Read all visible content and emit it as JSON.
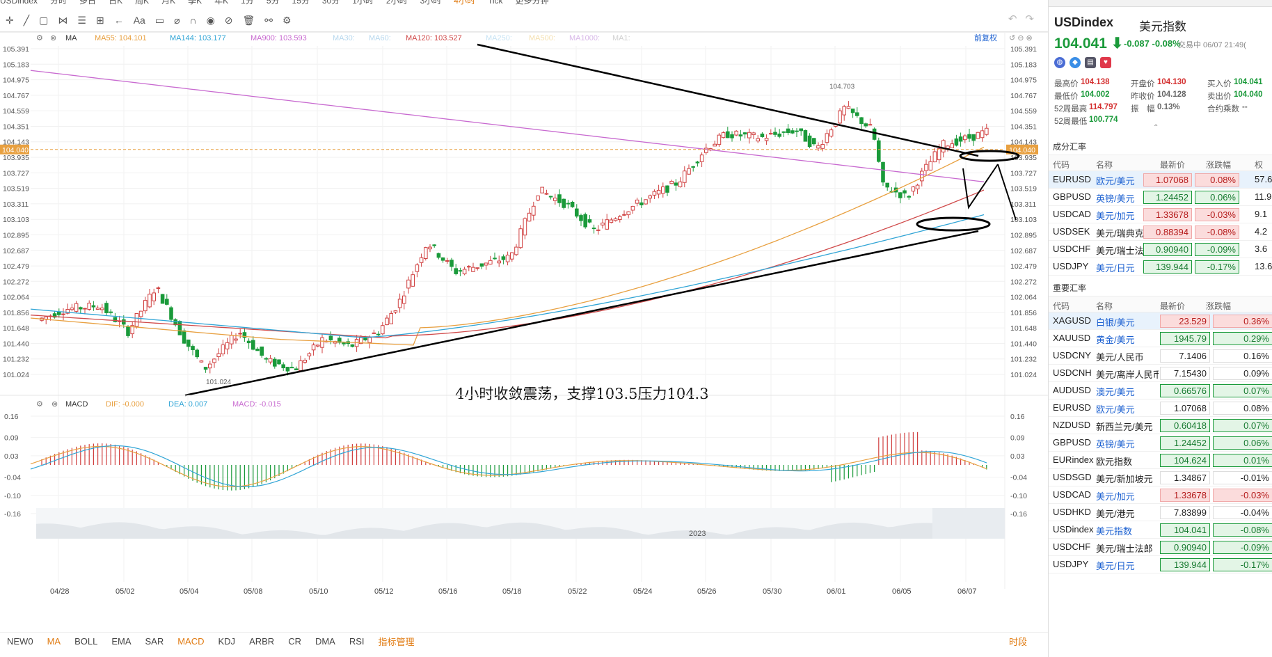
{
  "toolbar": {
    "periods": [
      "USDindex",
      "分时",
      "多日",
      "日K",
      "周K",
      "月K",
      "季K",
      "年K",
      "1分",
      "5分",
      "15分",
      "30分",
      "1小时",
      "2小时",
      "3小时",
      "4小时",
      "Tick",
      "更多分钟"
    ],
    "selected_period": "4小时"
  },
  "ma_legend": [
    {
      "label": "MA55:",
      "value": "104.101",
      "color": "#e8a040"
    },
    {
      "label": "MA144:",
      "value": "103.177",
      "color": "#31a5d6"
    },
    {
      "label": "MA900:",
      "value": "103.593",
      "color": "#c86ad0"
    },
    {
      "label": "MA30:",
      "value": "",
      "color": "#b8d8ee"
    },
    {
      "label": "MA60:",
      "value": "",
      "color": "#b8d8ee"
    },
    {
      "label": "MA120:",
      "value": "103.527",
      "color": "#d04a4a"
    },
    {
      "label": "MA250:",
      "value": "",
      "color": "#c8e4f4"
    },
    {
      "label": "MA500:",
      "value": "",
      "color": "#f4e0b0"
    },
    {
      "label": "MA1000:",
      "value": "",
      "color": "#d8b8e8"
    },
    {
      "label": "MA1:",
      "value": "",
      "color": "#d0d0d0"
    }
  ],
  "ma_title": "MA",
  "adjust_label": "前复权",
  "macd_legend": {
    "title": "MACD",
    "dif": "DIF: -0.000",
    "dea": "DEA: 0.007",
    "macd": "MACD: -0.015"
  },
  "chart_data": {
    "type": "candlestick",
    "price_axis": [
      "105.391",
      "105.183",
      "104.975",
      "104.767",
      "104.559",
      "104.351",
      "104.143",
      "103.935",
      "103.727",
      "103.519",
      "103.311",
      "103.103",
      "102.895",
      "102.687",
      "102.479",
      "102.272",
      "102.064",
      "101.856",
      "101.648",
      "101.440",
      "101.232",
      "101.024"
    ],
    "macd_axis": [
      "0.16",
      "0.09",
      "0.03",
      "-0.04",
      "-0.10",
      "-0.16"
    ],
    "date_axis": [
      "04/28",
      "05/02",
      "05/04",
      "05/08",
      "05/10",
      "05/12",
      "05/16",
      "05/18",
      "05/22",
      "05/24",
      "05/26",
      "05/30",
      "06/01",
      "06/05",
      "06/07"
    ],
    "last_price_marker": "104.040",
    "high_label": "104.703",
    "low_label": "101.024",
    "annotation": "4小时收敛震荡，支撑103.5压力104.3",
    "overview_year": "2023"
  },
  "indicator_bar": {
    "items": [
      "NEW0",
      "MA",
      "BOLL",
      "EMA",
      "SAR",
      "MACD",
      "KDJ",
      "ARBR",
      "CR",
      "DMA",
      "RSI"
    ],
    "active": [
      "MA",
      "MACD"
    ],
    "manage": "指标管理",
    "right": "时段"
  },
  "quote": {
    "symbol": "USDindex",
    "name": "美元指数",
    "price": "104.041",
    "change": "-0.087",
    "pct": "-0.08%",
    "status": "交易中 06/07 21:49(",
    "rows": [
      [
        [
          "最高价",
          "104.138",
          "red"
        ],
        [
          "开盘价",
          "104.130",
          "red"
        ],
        [
          "买入价",
          "104.041",
          "green"
        ]
      ],
      [
        [
          "最低价",
          "104.002",
          "green"
        ],
        [
          "昨收价",
          "104.128",
          "gray"
        ],
        [
          "卖出价",
          "104.040",
          "green"
        ]
      ],
      [
        [
          "52周最高",
          "114.797",
          "red"
        ],
        [
          "振　幅",
          "0.13%",
          "gray"
        ],
        [
          "合约乘数",
          "--",
          "gray"
        ]
      ],
      [
        [
          "52周最低",
          "100.774",
          "green"
        ],
        [
          "",
          ""
        ],
        [
          "",
          ""
        ]
      ]
    ]
  },
  "components": {
    "title": "成分汇率",
    "headers": [
      "代码",
      "名称",
      "最新价",
      "涨跌幅",
      "权"
    ],
    "rows": [
      {
        "code": "EURUSD",
        "name": "欧元/美元",
        "price": "1.07068",
        "pct": "0.08%",
        "w": "57.6",
        "dir": "up",
        "hl": true
      },
      {
        "code": "GBPUSD",
        "name": "英镑/美元",
        "price": "1.24452",
        "pct": "0.06%",
        "w": "11.9",
        "dir": "dn"
      },
      {
        "code": "USDCAD",
        "name": "美元/加元",
        "price": "1.33678",
        "pct": "-0.03%",
        "w": "9.1",
        "dir": "up"
      },
      {
        "code": "USDSEK",
        "name": "美元/瑞典克",
        "price": "0.88394",
        "pct": "-0.08%",
        "w": "4.2",
        "dir": "up"
      },
      {
        "code": "USDCHF",
        "name": "美元/瑞士法",
        "price": "0.90940",
        "pct": "-0.09%",
        "w": "3.6",
        "dir": "dn"
      },
      {
        "code": "USDJPY",
        "name": "美元/日元",
        "price": "139.944",
        "pct": "-0.17%",
        "w": "13.6",
        "dir": "dn"
      }
    ]
  },
  "major": {
    "title": "重要汇率",
    "headers": [
      "代码",
      "名称",
      "最新价",
      "涨跌幅"
    ],
    "rows": [
      {
        "code": "XAGUSD",
        "name": "白银/美元",
        "price": "23.529",
        "pct": "0.36%",
        "dir": "up",
        "hl": true
      },
      {
        "code": "XAUUSD",
        "name": "黄金/美元",
        "price": "1945.79",
        "pct": "0.29%",
        "dir": "dn"
      },
      {
        "code": "USDCNY",
        "name": "美元/人民币",
        "price": "7.1406",
        "pct": "0.16%",
        "dir": "fl"
      },
      {
        "code": "USDCNH",
        "name": "美元/离岸人民币",
        "price": "7.15430",
        "pct": "0.09%",
        "dir": "fl"
      },
      {
        "code": "AUDUSD",
        "name": "澳元/美元",
        "price": "0.66576",
        "pct": "0.07%",
        "dir": "dn"
      },
      {
        "code": "EURUSD",
        "name": "欧元/美元",
        "price": "1.07068",
        "pct": "0.08%",
        "dir": "fl"
      },
      {
        "code": "NZDUSD",
        "name": "新西兰元/美元",
        "price": "0.60418",
        "pct": "0.07%",
        "dir": "dn"
      },
      {
        "code": "GBPUSD",
        "name": "英镑/美元",
        "price": "1.24452",
        "pct": "0.06%",
        "dir": "dn"
      },
      {
        "code": "EURindex",
        "name": "欧元指数",
        "price": "104.624",
        "pct": "0.01%",
        "dir": "dn"
      },
      {
        "code": "USDSGD",
        "name": "美元/新加坡元",
        "price": "1.34867",
        "pct": "-0.01%",
        "dir": "fl"
      },
      {
        "code": "USDCAD",
        "name": "美元/加元",
        "price": "1.33678",
        "pct": "-0.03%",
        "dir": "up"
      },
      {
        "code": "USDHKD",
        "name": "美元/港元",
        "price": "7.83899",
        "pct": "-0.04%",
        "dir": "fl"
      },
      {
        "code": "USDindex",
        "name": "美元指数",
        "price": "104.041",
        "pct": "-0.08%",
        "dir": "dn"
      },
      {
        "code": "USDCHF",
        "name": "美元/瑞士法郎",
        "price": "0.90940",
        "pct": "-0.09%",
        "dir": "dn"
      },
      {
        "code": "USDJPY",
        "name": "美元/日元",
        "price": "139.944",
        "pct": "-0.17%",
        "dir": "dn"
      }
    ]
  }
}
